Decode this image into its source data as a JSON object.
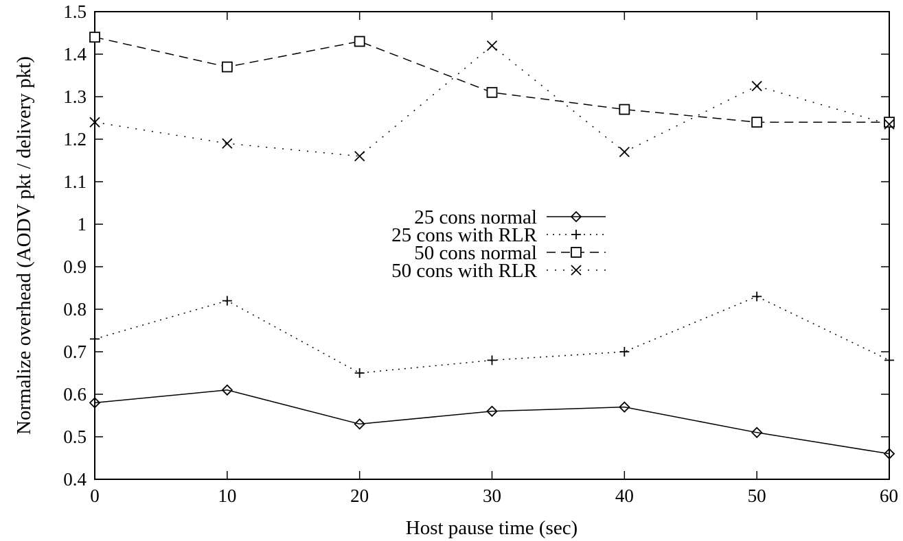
{
  "chart_data": {
    "type": "line",
    "title": "",
    "xlabel": "Host pause time (sec)",
    "ylabel": "Normalize overhead (AODV pkt / delivery pkt)",
    "xlim": [
      0,
      60
    ],
    "ylim": [
      0.4,
      1.5
    ],
    "x": [
      0,
      10,
      20,
      30,
      40,
      50,
      60
    ],
    "x_ticks": [
      "0",
      "10",
      "20",
      "30",
      "40",
      "50",
      "60"
    ],
    "y_ticks": [
      "0.4",
      "0.5",
      "0.6",
      "0.7",
      "0.8",
      "0.9",
      "1",
      "1.1",
      "1.2",
      "1.3",
      "1.4",
      "1.5"
    ],
    "grid": false,
    "legend_position": "center",
    "series": [
      {
        "name": "25 cons normal",
        "marker": "diamond",
        "dash": "solid",
        "values": [
          0.58,
          0.61,
          0.53,
          0.56,
          0.57,
          0.51,
          0.46
        ]
      },
      {
        "name": "25 cons with RLR",
        "marker": "plus",
        "dash": "dotted",
        "values": [
          0.73,
          0.82,
          0.65,
          0.68,
          0.7,
          0.83,
          0.68
        ]
      },
      {
        "name": "50 cons normal",
        "marker": "square",
        "dash": "dashed",
        "values": [
          1.44,
          1.37,
          1.43,
          1.31,
          1.27,
          1.24,
          1.24
        ]
      },
      {
        "name": "50 cons with RLR",
        "marker": "cross",
        "dash": "dotted-sparse",
        "values": [
          1.24,
          1.19,
          1.16,
          1.42,
          1.17,
          1.325,
          1.235
        ]
      }
    ]
  }
}
